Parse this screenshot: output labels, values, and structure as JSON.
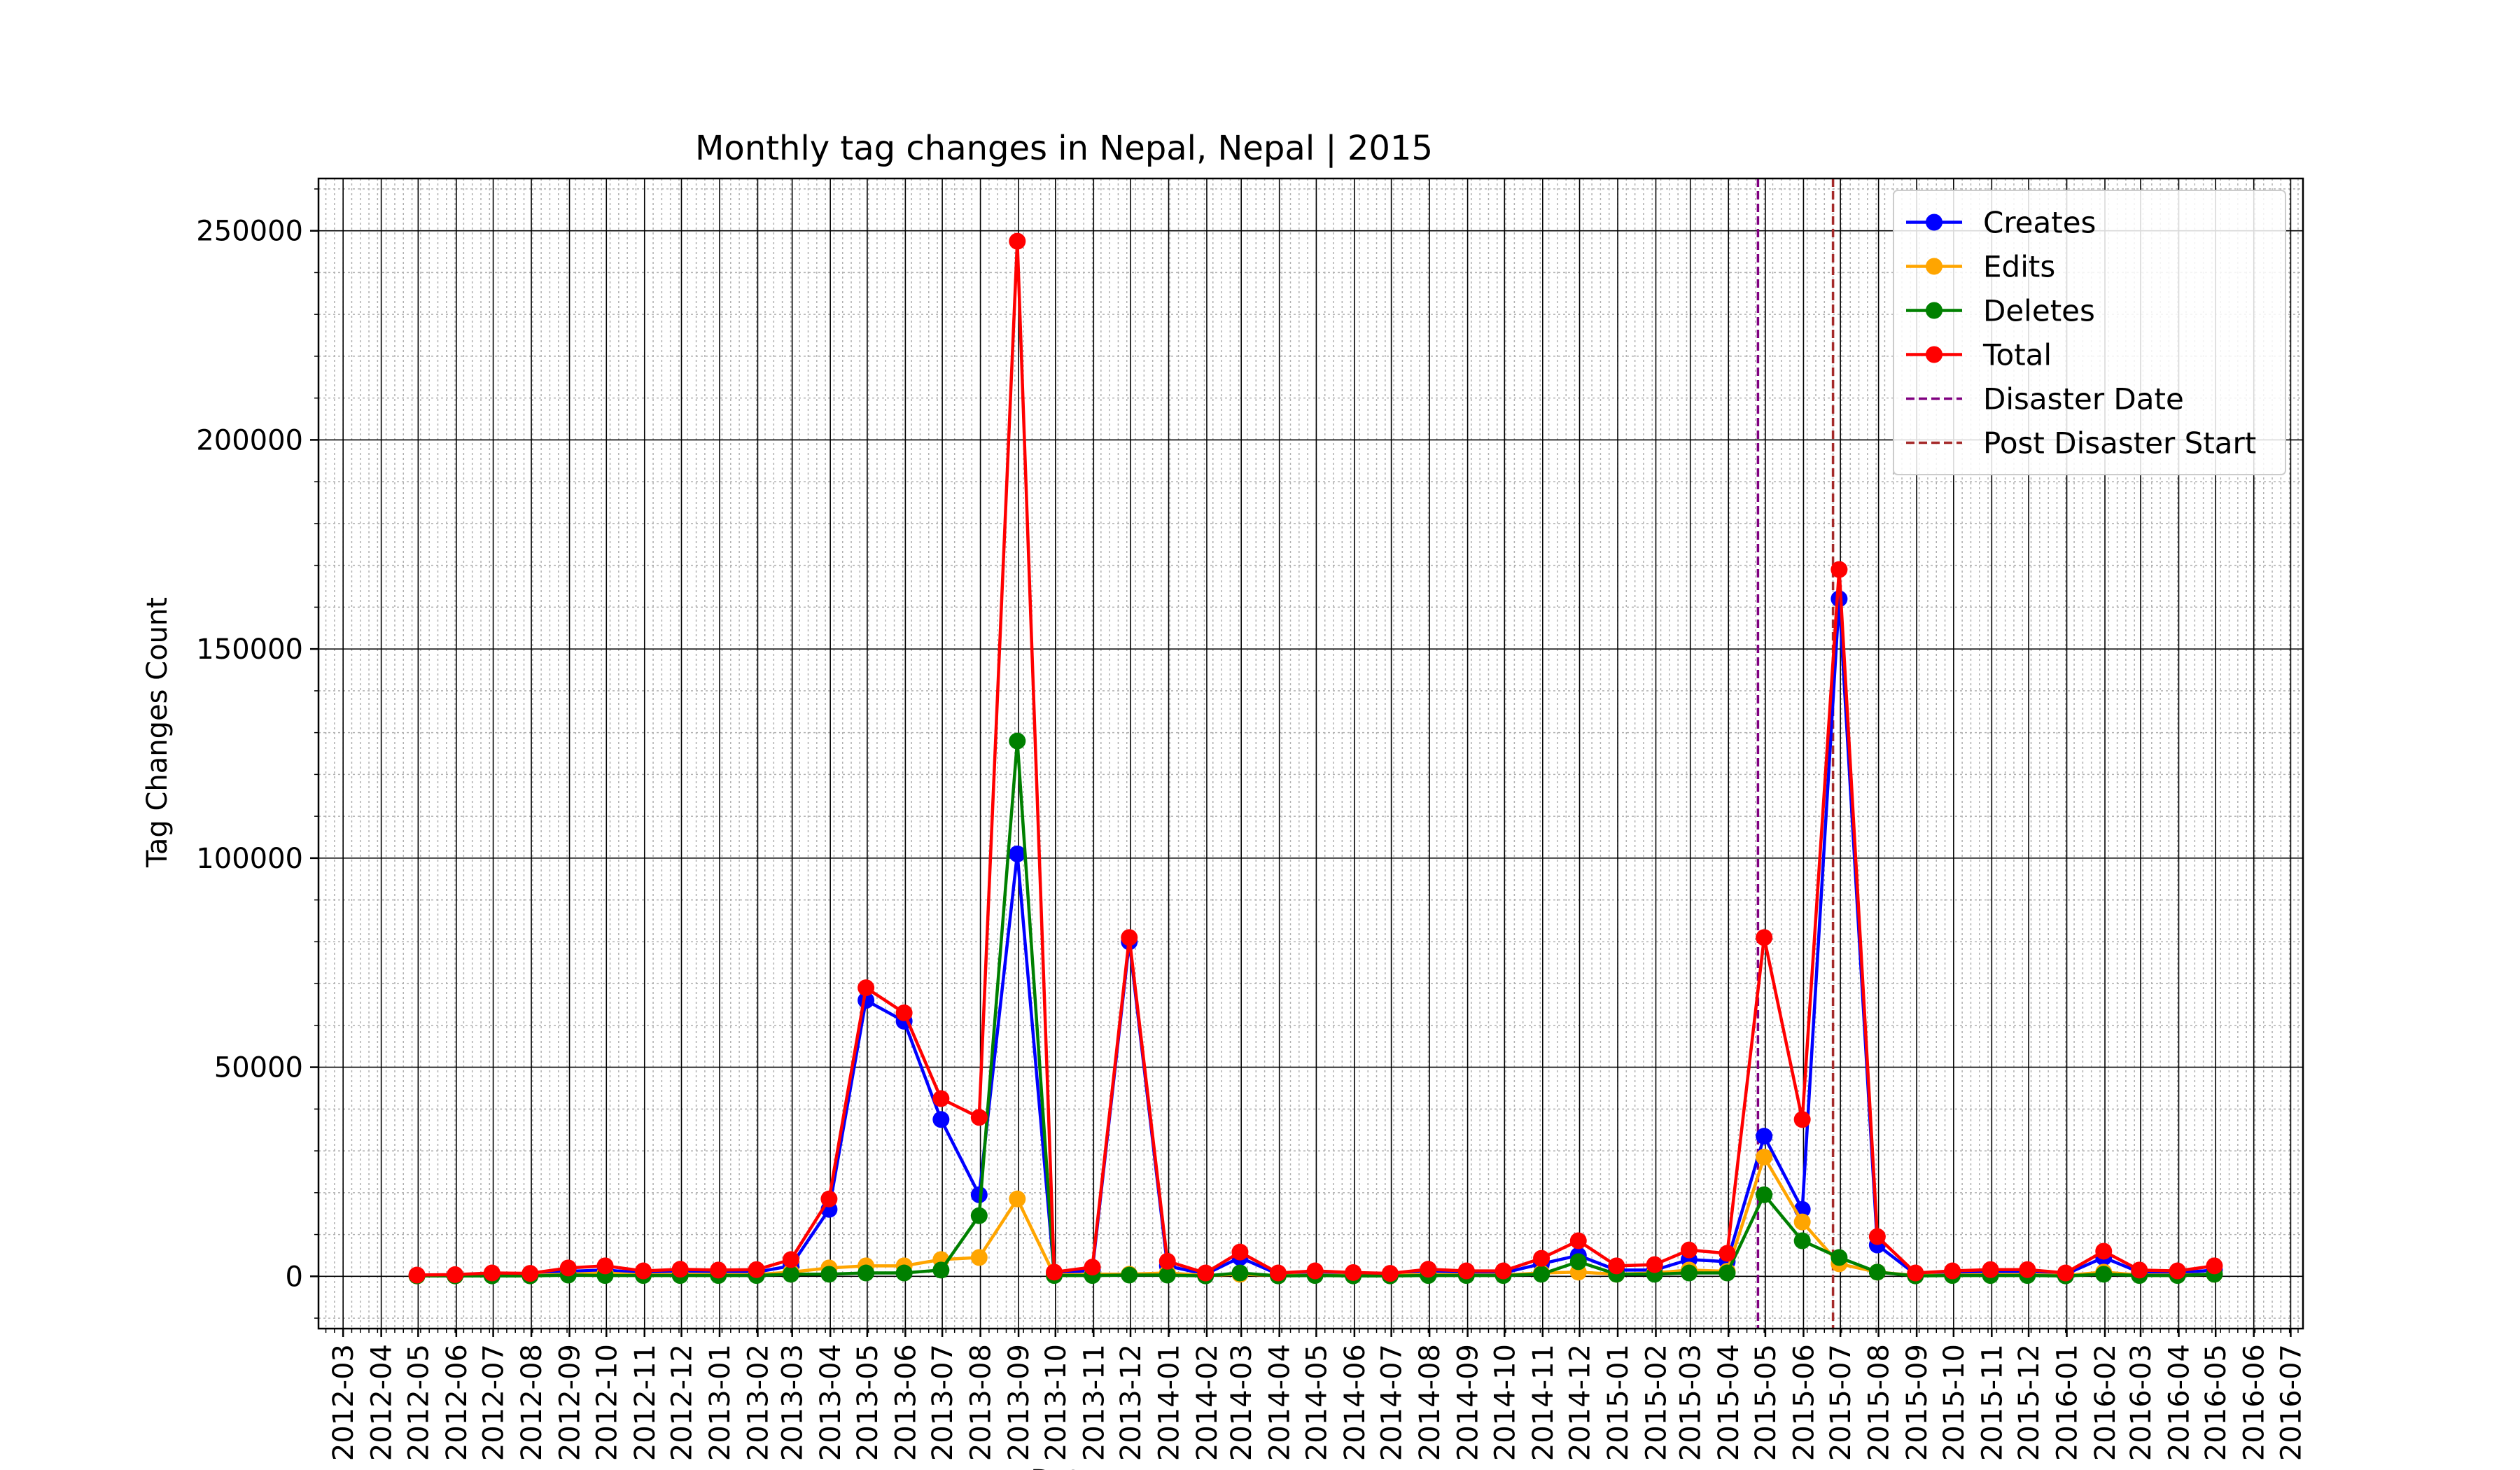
{
  "chart_data": {
    "type": "line",
    "title": "Monthly tag changes in Nepal, Nepal | 2015",
    "xlabel": "Date",
    "ylabel": "Tag Changes Count",
    "ylim": [
      -12500,
      262500
    ],
    "yticks": [
      0,
      50000,
      100000,
      150000,
      200000,
      250000
    ],
    "xrange": [
      "2012-03",
      "2016-07"
    ],
    "xticks": [
      "2012-03",
      "2012-04",
      "2012-05",
      "2012-06",
      "2012-07",
      "2012-08",
      "2012-09",
      "2012-10",
      "2012-11",
      "2012-12",
      "2013-01",
      "2013-02",
      "2013-03",
      "2013-04",
      "2013-05",
      "2013-06",
      "2013-07",
      "2013-08",
      "2013-09",
      "2013-10",
      "2013-11",
      "2013-12",
      "2014-01",
      "2014-02",
      "2014-03",
      "2014-04",
      "2014-05",
      "2014-06",
      "2014-07",
      "2014-08",
      "2014-09",
      "2014-10",
      "2014-11",
      "2014-12",
      "2015-01",
      "2015-02",
      "2015-03",
      "2015-04",
      "2015-05",
      "2015-06",
      "2015-07",
      "2015-08",
      "2015-09",
      "2015-10",
      "2015-11",
      "2015-12",
      "2016-01",
      "2016-02",
      "2016-03",
      "2016-04",
      "2016-05",
      "2016-06",
      "2016-07"
    ],
    "grid": true,
    "legend_position": "top-right",
    "x": [
      "2012-04-30",
      "2012-05-31",
      "2012-06-30",
      "2012-07-31",
      "2012-08-31",
      "2012-09-30",
      "2012-10-31",
      "2012-11-30",
      "2012-12-31",
      "2013-01-31",
      "2013-02-28",
      "2013-03-31",
      "2013-04-30",
      "2013-05-31",
      "2013-06-30",
      "2013-07-31",
      "2013-08-31",
      "2013-09-30",
      "2013-10-31",
      "2013-11-30",
      "2013-12-31",
      "2014-01-31",
      "2014-02-28",
      "2014-03-31",
      "2014-04-30",
      "2014-05-31",
      "2014-06-30",
      "2014-07-31",
      "2014-08-31",
      "2014-09-30",
      "2014-10-31",
      "2014-11-30",
      "2014-12-31",
      "2015-01-31",
      "2015-02-28",
      "2015-03-31",
      "2015-04-30",
      "2015-05-31",
      "2015-06-30",
      "2015-07-31",
      "2015-08-31",
      "2015-09-30",
      "2015-10-31",
      "2015-11-30",
      "2015-12-31",
      "2016-01-31",
      "2016-02-29",
      "2016-03-31",
      "2016-04-30"
    ],
    "series": [
      {
        "name": "Creates",
        "color": "#0000ff",
        "values": [
          200,
          300,
          500,
          400,
          1200,
          1500,
          800,
          1000,
          900,
          1000,
          2500,
          16000,
          66000,
          61000,
          37500,
          19500,
          101000,
          500,
          1500,
          80000,
          2500,
          500,
          4500,
          500,
          800,
          600,
          400,
          1000,
          800,
          800,
          3000,
          5000,
          1500,
          1500,
          4000,
          3500,
          33500,
          16000,
          162000,
          7500,
          500,
          800,
          1000,
          1000,
          500,
          4500,
          1000,
          800,
          1500
        ]
      },
      {
        "name": "Edits",
        "color": "#ffa500",
        "values": [
          100,
          100,
          200,
          200,
          500,
          800,
          300,
          500,
          400,
          400,
          1000,
          2000,
          2500,
          2500,
          4000,
          4500,
          18500,
          300,
          500,
          500,
          800,
          200,
          500,
          200,
          300,
          200,
          200,
          500,
          300,
          300,
          800,
          1000,
          500,
          800,
          1500,
          1200,
          28500,
          13000,
          3000,
          1000,
          200,
          300,
          400,
          400,
          200,
          1000,
          300,
          300,
          500
        ]
      },
      {
        "name": "Deletes",
        "color": "#008000",
        "values": [
          100,
          100,
          100,
          100,
          300,
          200,
          200,
          200,
          200,
          200,
          500,
          500,
          800,
          800,
          1500,
          14500,
          128000,
          200,
          200,
          300,
          300,
          100,
          800,
          100,
          200,
          100,
          100,
          200,
          200,
          200,
          500,
          3500,
          500,
          500,
          800,
          800,
          19500,
          8500,
          4500,
          1000,
          100,
          200,
          200,
          200,
          100,
          500,
          200,
          200,
          500
        ]
      },
      {
        "name": "Total",
        "color": "#ff0000",
        "values": [
          300,
          400,
          800,
          700,
          2000,
          2500,
          1300,
          1700,
          1500,
          1600,
          4000,
          18500,
          69000,
          63000,
          42500,
          38000,
          247500,
          1000,
          2200,
          81000,
          3600,
          800,
          5800,
          800,
          1300,
          900,
          700,
          1700,
          1300,
          1300,
          4300,
          8500,
          2500,
          2800,
          6300,
          5500,
          81000,
          37500,
          169000,
          9500,
          800,
          1300,
          1600,
          1600,
          800,
          6000,
          1500,
          1300,
          2500
        ]
      }
    ],
    "vlines": [
      {
        "name": "Disaster Date",
        "color": "#800080",
        "x": "2015-04-25"
      },
      {
        "name": "Post Disaster Start",
        "color": "#a52a2a",
        "x": "2015-06-25"
      }
    ]
  }
}
